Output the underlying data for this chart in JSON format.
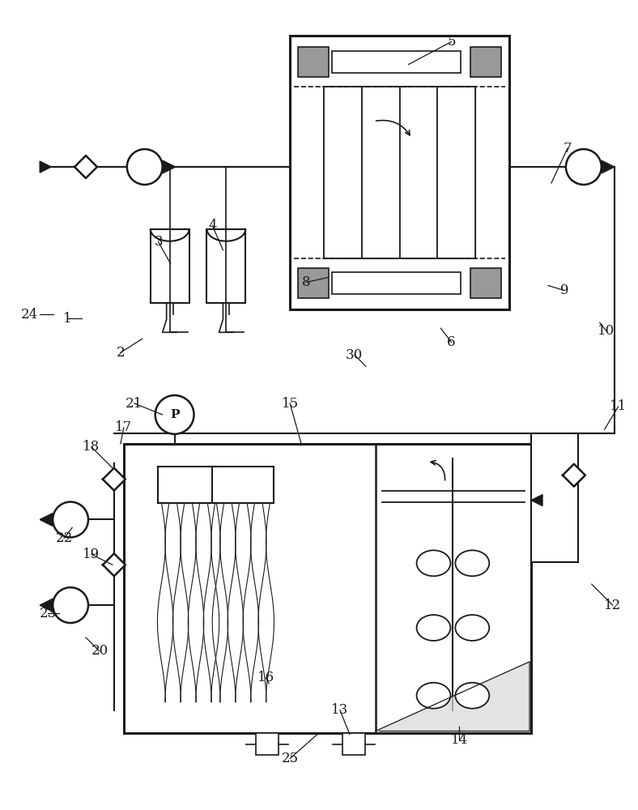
{
  "bg_color": "#ffffff",
  "lc": "#1a1a1a",
  "gray": "#999999",
  "light_gray": "#d0d0d0",
  "labels": [
    [
      "1",
      82,
      393
    ],
    [
      "2",
      148,
      435
    ],
    [
      "3",
      195,
      298
    ],
    [
      "4",
      262,
      278
    ],
    [
      "5",
      558,
      50
    ],
    [
      "6",
      558,
      422
    ],
    [
      "7",
      702,
      182
    ],
    [
      "8",
      378,
      348
    ],
    [
      "9",
      698,
      358
    ],
    [
      "10",
      750,
      408
    ],
    [
      "11",
      765,
      502
    ],
    [
      "12",
      758,
      748
    ],
    [
      "13",
      420,
      878
    ],
    [
      "14",
      568,
      915
    ],
    [
      "15",
      358,
      498
    ],
    [
      "16",
      328,
      838
    ],
    [
      "17",
      152,
      528
    ],
    [
      "18",
      112,
      552
    ],
    [
      "19",
      112,
      685
    ],
    [
      "20",
      122,
      805
    ],
    [
      "21",
      165,
      498
    ],
    [
      "22",
      78,
      665
    ],
    [
      "23",
      58,
      758
    ],
    [
      "24",
      35,
      388
    ],
    [
      "25",
      358,
      938
    ],
    [
      "30",
      438,
      438
    ]
  ],
  "leaders": [
    [
      "24",
      48,
      388,
      65,
      388
    ],
    [
      "1",
      82,
      393,
      100,
      393
    ],
    [
      "2",
      148,
      435,
      175,
      418
    ],
    [
      "3",
      195,
      298,
      210,
      325
    ],
    [
      "4",
      262,
      278,
      275,
      308
    ],
    [
      "5",
      558,
      50,
      505,
      78
    ],
    [
      "6",
      558,
      422,
      545,
      405
    ],
    [
      "7",
      702,
      182,
      682,
      225
    ],
    [
      "8",
      378,
      348,
      405,
      342
    ],
    [
      "9",
      698,
      358,
      678,
      352
    ],
    [
      "10",
      750,
      408,
      742,
      398
    ],
    [
      "11",
      765,
      502,
      748,
      530
    ],
    [
      "12",
      758,
      748,
      732,
      722
    ],
    [
      "13",
      420,
      878,
      432,
      908
    ],
    [
      "14",
      568,
      915,
      568,
      898
    ],
    [
      "15",
      358,
      498,
      372,
      548
    ],
    [
      "16",
      328,
      838,
      332,
      845
    ],
    [
      "17",
      152,
      528,
      148,
      548
    ],
    [
      "18",
      112,
      552,
      138,
      578
    ],
    [
      "19",
      112,
      685,
      138,
      698
    ],
    [
      "20",
      122,
      805,
      105,
      788
    ],
    [
      "21",
      165,
      498,
      200,
      512
    ],
    [
      "22",
      78,
      665,
      88,
      652
    ],
    [
      "23",
      58,
      758,
      72,
      758
    ],
    [
      "25",
      358,
      938,
      392,
      908
    ],
    [
      "30",
      438,
      438,
      452,
      452
    ]
  ]
}
